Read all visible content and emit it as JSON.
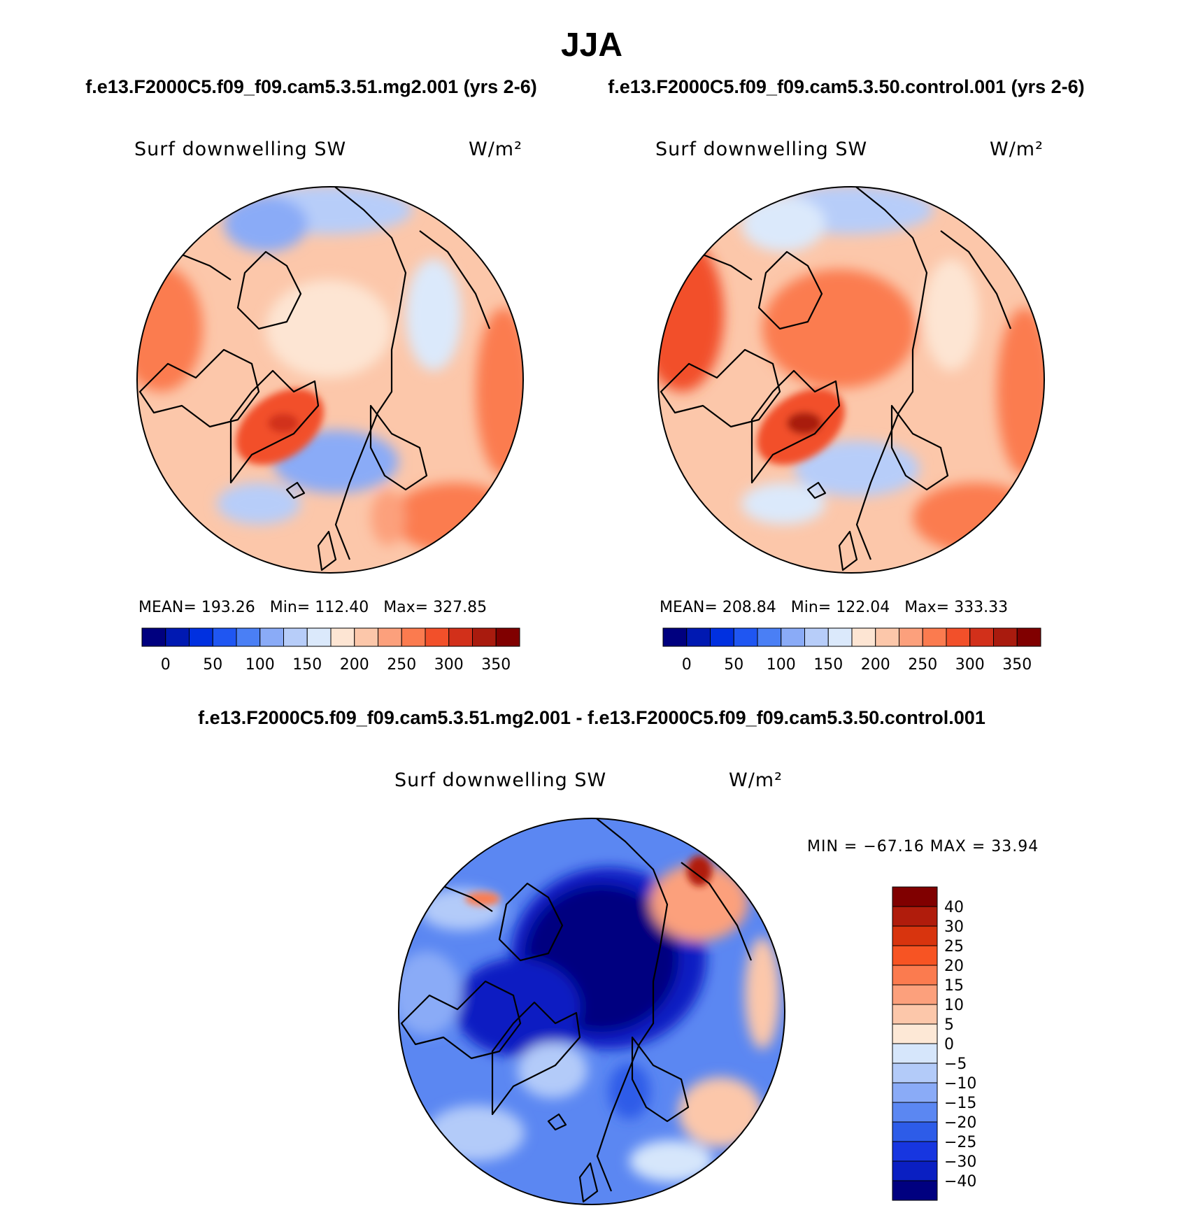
{
  "figure": {
    "title": "JJA",
    "panel1_header": "f.e13.F2000C5.f09_f09.cam5.3.51.mg2.001 (yrs 2-6)",
    "panel2_header": "f.e13.F2000C5.f09_f09.cam5.3.50.control.001 (yrs 2-6)",
    "diff_header": "f.e13.F2000C5.f09_f09.cam5.3.51.mg2.001 - f.e13.F2000C5.f09_f09.cam5.3.50.control.001"
  },
  "chart_data": [
    {
      "type": "heatmap",
      "projection": "polar-stereographic-north",
      "variable_label": "Surf downwelling SW",
      "units": "W/m²",
      "stats": {
        "mean": "193.26",
        "min": "112.40",
        "max": "327.85"
      },
      "stats_text": "MEAN= 193.26   Min= 112.40   Max= 327.85",
      "colorbar_orientation": "horizontal",
      "levels": [
        0,
        25,
        50,
        75,
        100,
        125,
        150,
        175,
        200,
        225,
        250,
        275,
        300,
        325,
        350
      ],
      "tick_labels": [
        "0",
        "50",
        "100",
        "150",
        "200",
        "250",
        "300",
        "350"
      ],
      "colors": [
        "#00007f",
        "#0019b2",
        "#0030e0",
        "#1f56f2",
        "#4a7ff5",
        "#8aabf7",
        "#b7cdf9",
        "#dbe9fb",
        "#fde5d3",
        "#fcc7aa",
        "#fca07c",
        "#fb7b4f",
        "#f2502a",
        "#d2301a",
        "#a91b0e",
        "#800000"
      ]
    },
    {
      "type": "heatmap",
      "projection": "polar-stereographic-north",
      "variable_label": "Surf downwelling SW",
      "units": "W/m²",
      "stats": {
        "mean": "208.84",
        "min": "122.04",
        "max": "333.33"
      },
      "stats_text": "MEAN= 208.84   Min= 122.04   Max= 333.33",
      "colorbar_orientation": "horizontal",
      "levels": [
        0,
        25,
        50,
        75,
        100,
        125,
        150,
        175,
        200,
        225,
        250,
        275,
        300,
        325,
        350
      ],
      "tick_labels": [
        "0",
        "50",
        "100",
        "150",
        "200",
        "250",
        "300",
        "350"
      ],
      "colors": [
        "#00007f",
        "#0019b2",
        "#0030e0",
        "#1f56f2",
        "#4a7ff5",
        "#8aabf7",
        "#b7cdf9",
        "#dbe9fb",
        "#fde5d3",
        "#fcc7aa",
        "#fca07c",
        "#fb7b4f",
        "#f2502a",
        "#d2301a",
        "#a91b0e",
        "#800000"
      ]
    },
    {
      "type": "heatmap",
      "projection": "polar-stereographic-north",
      "variable_label": "Surf downwelling SW",
      "units": "W/m²",
      "stats": {
        "min": "-67.16",
        "max": "33.94"
      },
      "stats_text": "MIN = −67.16 MAX =  33.94",
      "colorbar_orientation": "vertical",
      "levels": [
        -40,
        -30,
        -25,
        -20,
        -15,
        -10,
        -5,
        0,
        5,
        10,
        15,
        20,
        25,
        30,
        40
      ],
      "tick_labels": [
        "40",
        "30",
        "25",
        "20",
        "15",
        "10",
        "5",
        "0",
        "−5",
        "−10",
        "−15",
        "−20",
        "−25",
        "−30",
        "−40"
      ],
      "colors": [
        "#800000",
        "#b01c0c",
        "#d8340e",
        "#f75423",
        "#fb7b4f",
        "#fca07c",
        "#fcc7aa",
        "#fde8d6",
        "#d6e6fb",
        "#b3cbf9",
        "#8aabf7",
        "#5b87f2",
        "#2d5ce8",
        "#1736e0",
        "#0a1fc2",
        "#000080"
      ]
    }
  ]
}
